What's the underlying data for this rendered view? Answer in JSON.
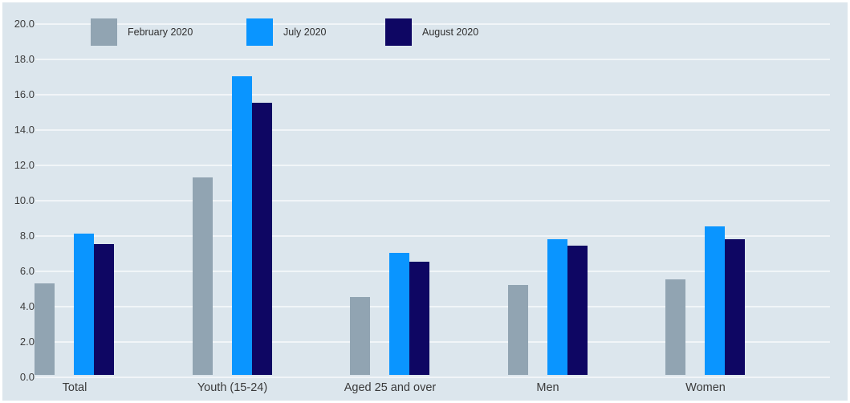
{
  "chart_data": {
    "type": "bar",
    "title": "",
    "xlabel": "",
    "ylabel": "",
    "categories": [
      "Total",
      "Youth (15-24)",
      "Aged 25 and over",
      "Men",
      "Women"
    ],
    "series": [
      {
        "name": "February 2020",
        "color": "#91a4b2",
        "values": [
          5.2,
          11.2,
          4.4,
          5.1,
          5.4
        ]
      },
      {
        "name": "July 2020",
        "color": "#0a95ff",
        "values": [
          8.0,
          16.9,
          6.9,
          7.7,
          8.4
        ]
      },
      {
        "name": "August 2020",
        "color": "#0e0663",
        "values": [
          7.4,
          15.4,
          6.4,
          7.3,
          7.7
        ]
      }
    ],
    "y_axis": {
      "min": 0,
      "max": 20,
      "step": 2,
      "tick_labels": [
        "0.0",
        "2.0",
        "4.0",
        "6.0",
        "8.0",
        "10.0",
        "12.0",
        "14.0",
        "16.0",
        "18.0",
        "20.0"
      ]
    },
    "grid": true,
    "legend_position": "top-left"
  },
  "colors": {
    "background": "#dce6ed",
    "frame": "#ffffff",
    "gridline": "#ecf2f7",
    "text": "#3d3d3d"
  }
}
